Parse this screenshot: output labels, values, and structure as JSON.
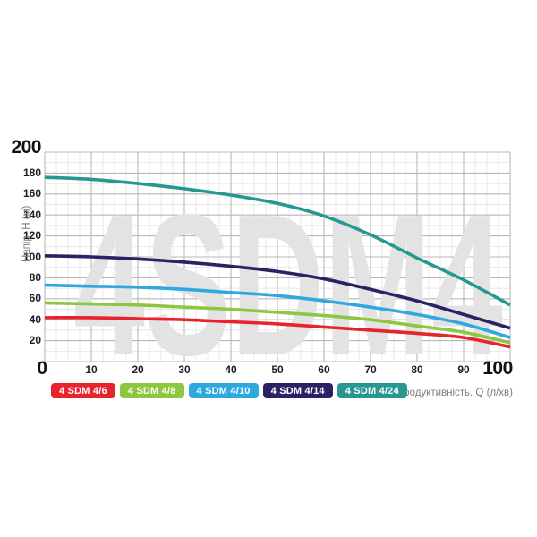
{
  "watermark": "4SDM4",
  "colors": {
    "background": "#ffffff",
    "grid_minor": "#dfdfdf",
    "grid_major": "#b8b8b8",
    "tick_text": "#1c1c26",
    "bold_tick_text": "#111114",
    "axis_title_text": "#7c7c7c",
    "watermark": "#e3e3e3"
  },
  "y_axis": {
    "title": "Напір, H (м)",
    "max_label": "200",
    "tick_labels": [
      "180",
      "160",
      "140",
      "120",
      "100",
      "80",
      "60",
      "40",
      "20"
    ]
  },
  "x_axis": {
    "title": "Продуктивність, Q (л/хв)",
    "origin_label": "0",
    "max_label": "100",
    "tick_labels": [
      "10",
      "20",
      "30",
      "40",
      "50",
      "60",
      "70",
      "80",
      "90"
    ]
  },
  "legend": [
    {
      "label": "4 SDM 4/6",
      "color": "#e8232d"
    },
    {
      "label": "4 SDM 4/8",
      "color": "#8dc63f"
    },
    {
      "label": "4 SDM 4/10",
      "color": "#2fa8e0"
    },
    {
      "label": "4 SDM 4/14",
      "color": "#2b2263"
    },
    {
      "label": "4 SDM 4/24",
      "color": "#279792"
    }
  ],
  "chart_data": {
    "type": "line",
    "title": "4SDM4",
    "xlabel": "Продуктивність, Q (л/хв)",
    "ylabel": "Напір, H (м)",
    "xlim": [
      0,
      100
    ],
    "ylim": [
      0,
      200
    ],
    "x_ticks": [
      0,
      10,
      20,
      30,
      40,
      50,
      60,
      70,
      80,
      90,
      100
    ],
    "y_ticks": [
      0,
      20,
      40,
      60,
      80,
      100,
      120,
      140,
      160,
      180,
      200
    ],
    "grid": true,
    "legend_position": "bottom",
    "x": [
      0,
      10,
      20,
      30,
      40,
      50,
      60,
      70,
      80,
      90,
      100
    ],
    "series": [
      {
        "name": "4 SDM 4/6",
        "color": "#e8232d",
        "values": [
          42,
          42,
          41,
          40,
          38,
          36,
          33,
          30,
          27,
          23,
          14
        ]
      },
      {
        "name": "4 SDM 4/8",
        "color": "#8dc63f",
        "values": [
          56,
          55,
          54,
          52,
          50,
          47,
          44,
          40,
          34,
          28,
          18
        ]
      },
      {
        "name": "4 SDM 4/10",
        "color": "#2fa8e0",
        "values": [
          73,
          72,
          71,
          69,
          66,
          63,
          58,
          52,
          45,
          36,
          23
        ]
      },
      {
        "name": "4 SDM 4/14",
        "color": "#2b2263",
        "values": [
          101,
          100,
          98,
          95,
          91,
          86,
          79,
          69,
          58,
          45,
          32
        ]
      },
      {
        "name": "4 SDM 4/24",
        "color": "#279792",
        "values": [
          176,
          174,
          170,
          165,
          159,
          151,
          139,
          121,
          99,
          78,
          54
        ]
      }
    ]
  }
}
